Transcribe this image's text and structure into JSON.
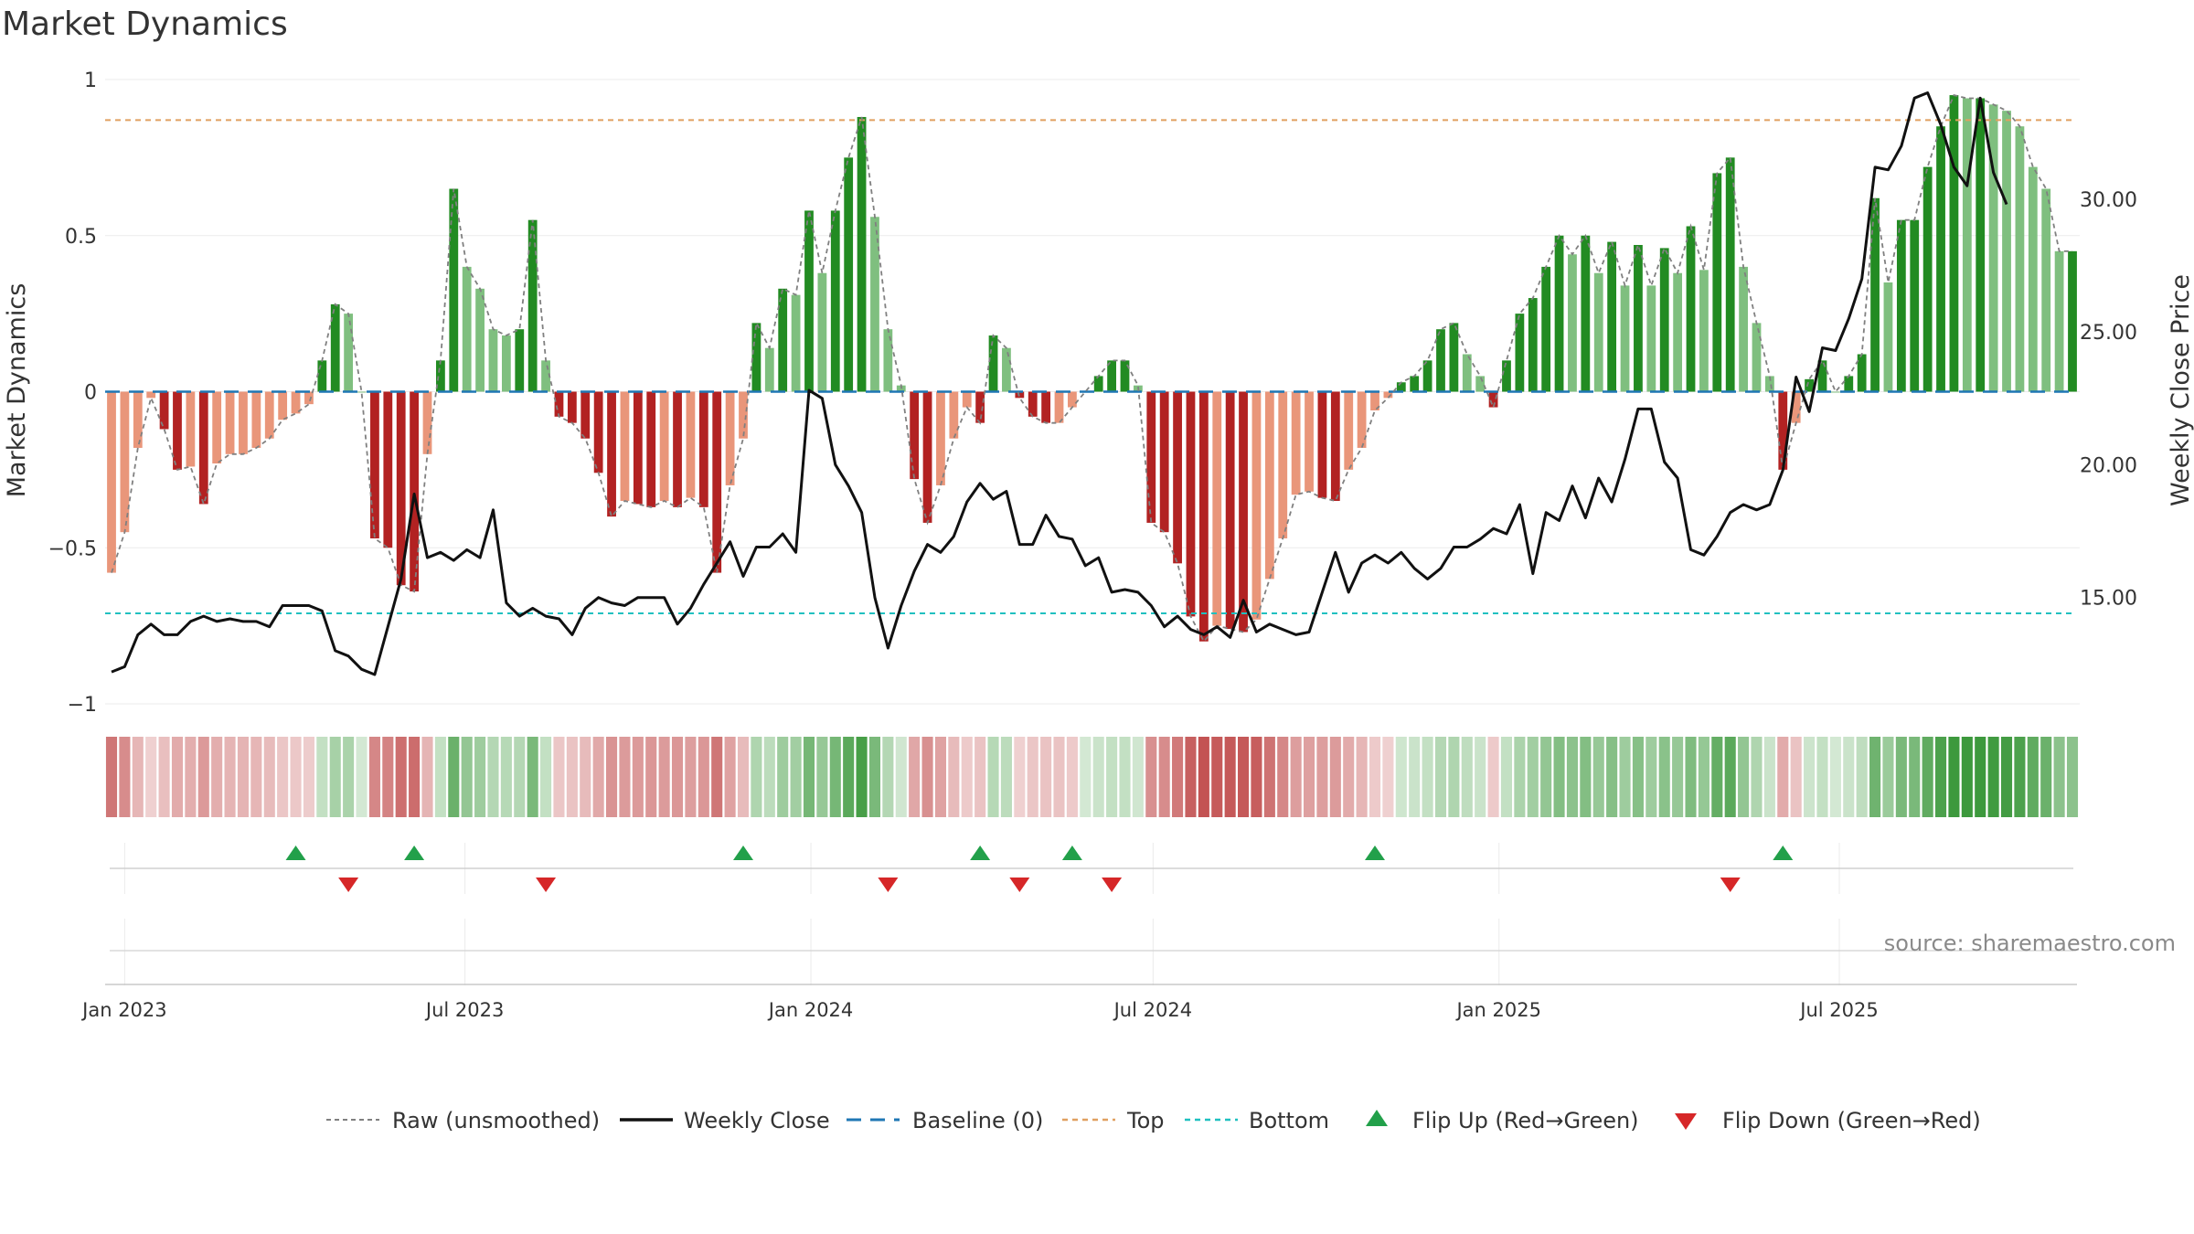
{
  "chart_data": {
    "type": "bar",
    "title": "Market Dynamics",
    "ylabel": "Market Dynamics",
    "y2label": "Weekly Close Price",
    "ylim": [
      -1,
      1
    ],
    "y2lim": [
      11,
      34.5
    ],
    "yticks": [
      "1",
      "0.5",
      "0",
      "−0.5",
      "−1"
    ],
    "yticks_values": [
      1,
      0.5,
      0,
      -0.5,
      -1
    ],
    "y2ticks": [
      "30.00",
      "25.00",
      "20.00",
      "15.00"
    ],
    "y2ticks_values": [
      30,
      25,
      20,
      15
    ],
    "x_start": "2022-12-25",
    "x_interval": "weekly",
    "xticks": [
      {
        "label": "Jan 2023",
        "date": "2023-01-01"
      },
      {
        "label": "Jul 2023",
        "date": "2023-07-01"
      },
      {
        "label": "Jan 2024",
        "date": "2024-01-01"
      },
      {
        "label": "Jul 2024",
        "date": "2024-07-01"
      },
      {
        "label": "Jan 2025",
        "date": "2025-01-01"
      },
      {
        "label": "Jul 2025",
        "date": "2025-07-01"
      }
    ],
    "top_level": 0.87,
    "bottom_level": -0.71,
    "baseline": 0,
    "series": [
      {
        "name": "Raw (unsmoothed)",
        "values": [
          -0.58,
          -0.45,
          -0.18,
          -0.02,
          -0.12,
          -0.25,
          -0.24,
          -0.36,
          -0.23,
          -0.2,
          -0.2,
          -0.18,
          -0.15,
          -0.09,
          -0.07,
          -0.04,
          0.1,
          0.28,
          0.25,
          0.0,
          -0.47,
          -0.5,
          -0.62,
          -0.64,
          -0.2,
          0.1,
          0.65,
          0.4,
          0.33,
          0.2,
          0.18,
          0.2,
          0.55,
          0.1,
          -0.08,
          -0.1,
          -0.15,
          -0.26,
          -0.4,
          -0.35,
          -0.36,
          -0.37,
          -0.35,
          -0.37,
          -0.34,
          -0.37,
          -0.58,
          -0.3,
          -0.15,
          0.22,
          0.14,
          0.33,
          0.31,
          0.58,
          0.38,
          0.58,
          0.75,
          0.88,
          0.56,
          0.2,
          0.02,
          -0.28,
          -0.42,
          -0.3,
          -0.15,
          -0.05,
          -0.1,
          0.18,
          0.14,
          -0.02,
          -0.08,
          -0.1,
          -0.1,
          -0.05,
          0.0,
          0.05,
          0.1,
          0.1,
          0.02,
          -0.42,
          -0.45,
          -0.55,
          -0.72,
          -0.8,
          -0.75,
          -0.76,
          -0.77,
          -0.73,
          -0.6,
          -0.47,
          -0.33,
          -0.32,
          -0.34,
          -0.35,
          -0.25,
          -0.18,
          -0.06,
          -0.02,
          0.03,
          0.05,
          0.1,
          0.2,
          0.22,
          0.12,
          0.05,
          -0.05,
          0.1,
          0.25,
          0.3,
          0.4,
          0.5,
          0.44,
          0.5,
          0.38,
          0.48,
          0.34,
          0.47,
          0.34,
          0.46,
          0.38,
          0.53,
          0.39,
          0.7,
          0.75,
          0.4,
          0.22,
          0.05,
          -0.25,
          -0.1,
          0.04,
          0.1,
          0.0,
          0.05,
          0.12,
          0.62,
          0.35,
          0.55,
          0.55,
          0.72,
          0.85,
          0.95,
          0.94,
          0.94,
          0.92,
          0.9,
          0.85,
          0.72,
          0.65,
          0.45,
          0.45
        ]
      },
      {
        "name": "Weekly Close",
        "values": [
          12.2,
          12.4,
          13.6,
          14.0,
          13.6,
          13.6,
          14.1,
          14.3,
          14.1,
          14.2,
          14.1,
          14.1,
          13.9,
          14.7,
          14.7,
          14.7,
          14.5,
          13.0,
          12.8,
          12.3,
          12.1,
          13.9,
          15.7,
          18.9,
          16.5,
          16.7,
          16.4,
          16.8,
          16.5,
          18.3,
          14.8,
          14.3,
          14.6,
          14.3,
          14.2,
          13.6,
          14.6,
          15.0,
          14.8,
          14.7,
          15.0,
          15.0,
          15.0,
          14.0,
          14.6,
          15.5,
          16.3,
          17.1,
          15.8,
          16.9,
          16.9,
          17.4,
          16.7,
          22.8,
          22.5,
          20.0,
          19.2,
          18.2,
          15.0,
          13.1,
          14.7,
          16.0,
          17.0,
          16.7,
          17.3,
          18.6,
          19.3,
          18.7,
          19.0,
          17.0,
          17.0,
          18.1,
          17.3,
          17.2,
          16.2,
          16.5,
          15.2,
          15.3,
          15.2,
          14.7,
          13.9,
          14.3,
          13.8,
          13.6,
          13.9,
          13.5,
          14.9,
          13.7,
          14.0,
          13.8,
          13.6,
          13.7,
          15.2,
          16.7,
          15.2,
          16.3,
          16.6,
          16.3,
          16.7,
          16.1,
          15.7,
          16.1,
          16.9,
          16.9,
          17.2,
          17.6,
          17.4,
          18.5,
          15.9,
          18.2,
          17.9,
          19.2,
          18.0,
          19.5,
          18.6,
          20.2,
          22.1,
          22.1,
          20.1,
          19.5,
          16.8,
          16.6,
          17.3,
          18.2,
          18.5,
          18.3,
          18.5,
          19.8,
          23.3,
          22.0,
          24.4,
          24.3,
          25.5,
          27.0,
          31.2,
          31.1,
          32.0,
          33.8,
          34.0,
          32.8,
          31.2,
          30.5,
          33.8,
          31.0,
          29.8
        ]
      }
    ],
    "legend": {
      "placement": "bottom",
      "entries": [
        "Raw (unsmoothed)",
        "Weekly Close",
        "Baseline (0)",
        "Top",
        "Bottom",
        "Flip Up (Red→Green)",
        "Flip Down (Green→Red)"
      ]
    },
    "legend_labels": {
      "raw": "Raw (unsmoothed)",
      "close": "Weekly Close",
      "baseline": "Baseline (0)",
      "top": "Top",
      "bottom": "Bottom",
      "flip_up": "Flip Up (Red→Green)",
      "flip_down": "Flip Down (Green→Red)"
    },
    "flip_up_weeks": [
      14,
      23,
      48,
      66,
      73,
      96,
      127
    ],
    "flip_down_weeks": [
      18,
      33,
      59,
      69,
      76,
      123
    ],
    "source": "source: sharemaestro.com",
    "colors": {
      "green_strong": "#228b22",
      "green_weak": "#7fbf7f",
      "red_strong": "#b22222",
      "red_weak": "#e9967a",
      "raw": "#808080",
      "close": "#111111",
      "baseline": "#1f77b4",
      "top": "#e0a060",
      "bottom": "#20c0c0",
      "flip_up": "#22a04a",
      "flip_down": "#d62728"
    }
  }
}
